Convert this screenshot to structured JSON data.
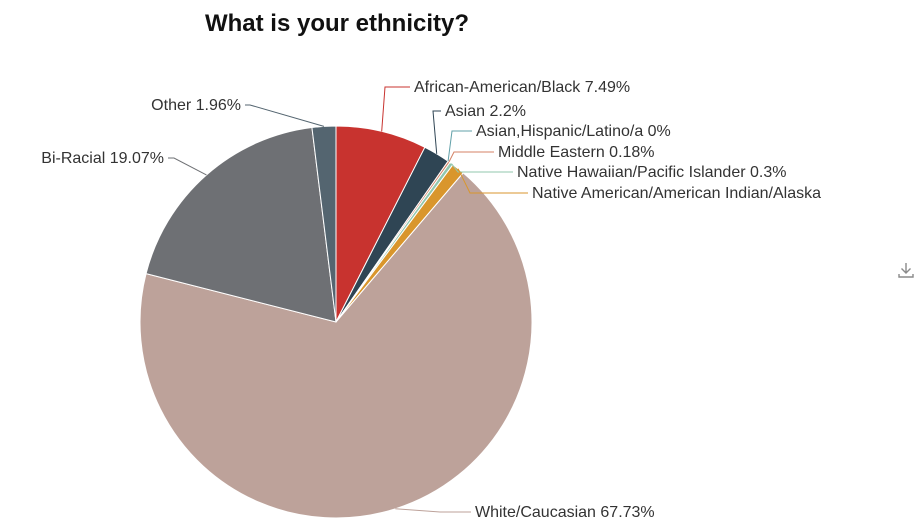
{
  "toolbar": {
    "download_icon": "download-icon"
  },
  "chart_data": {
    "type": "pie",
    "title": "What is your ethnicity?",
    "slices": [
      {
        "label": "African-American/Black 7.49%",
        "value": 7.49,
        "color": "#c8332f"
      },
      {
        "label": "Asian 2.2%",
        "value": 2.2,
        "color": "#2f4554"
      },
      {
        "label": "Asian,Hispanic/Latino/a 0%",
        "value": 0,
        "color": "#61a0a8"
      },
      {
        "label": "Middle Eastern 0.18%",
        "value": 0.18,
        "color": "#d48265"
      },
      {
        "label": "Native Hawaiian/Pacific Islander 0.3%",
        "value": 0.3,
        "color": "#91c7ae"
      },
      {
        "label": "Native American/American Indian/Alaska",
        "value": 1.07,
        "color": "#d9962c"
      },
      {
        "label": "White/Caucasian 67.73%",
        "value": 67.73,
        "color": "#bda29a"
      },
      {
        "label": "Bi-Racial 19.07%",
        "value": 19.07,
        "color": "#6e7074"
      },
      {
        "label": "Other 1.96%",
        "value": 1.96,
        "color": "#546570"
      }
    ]
  }
}
